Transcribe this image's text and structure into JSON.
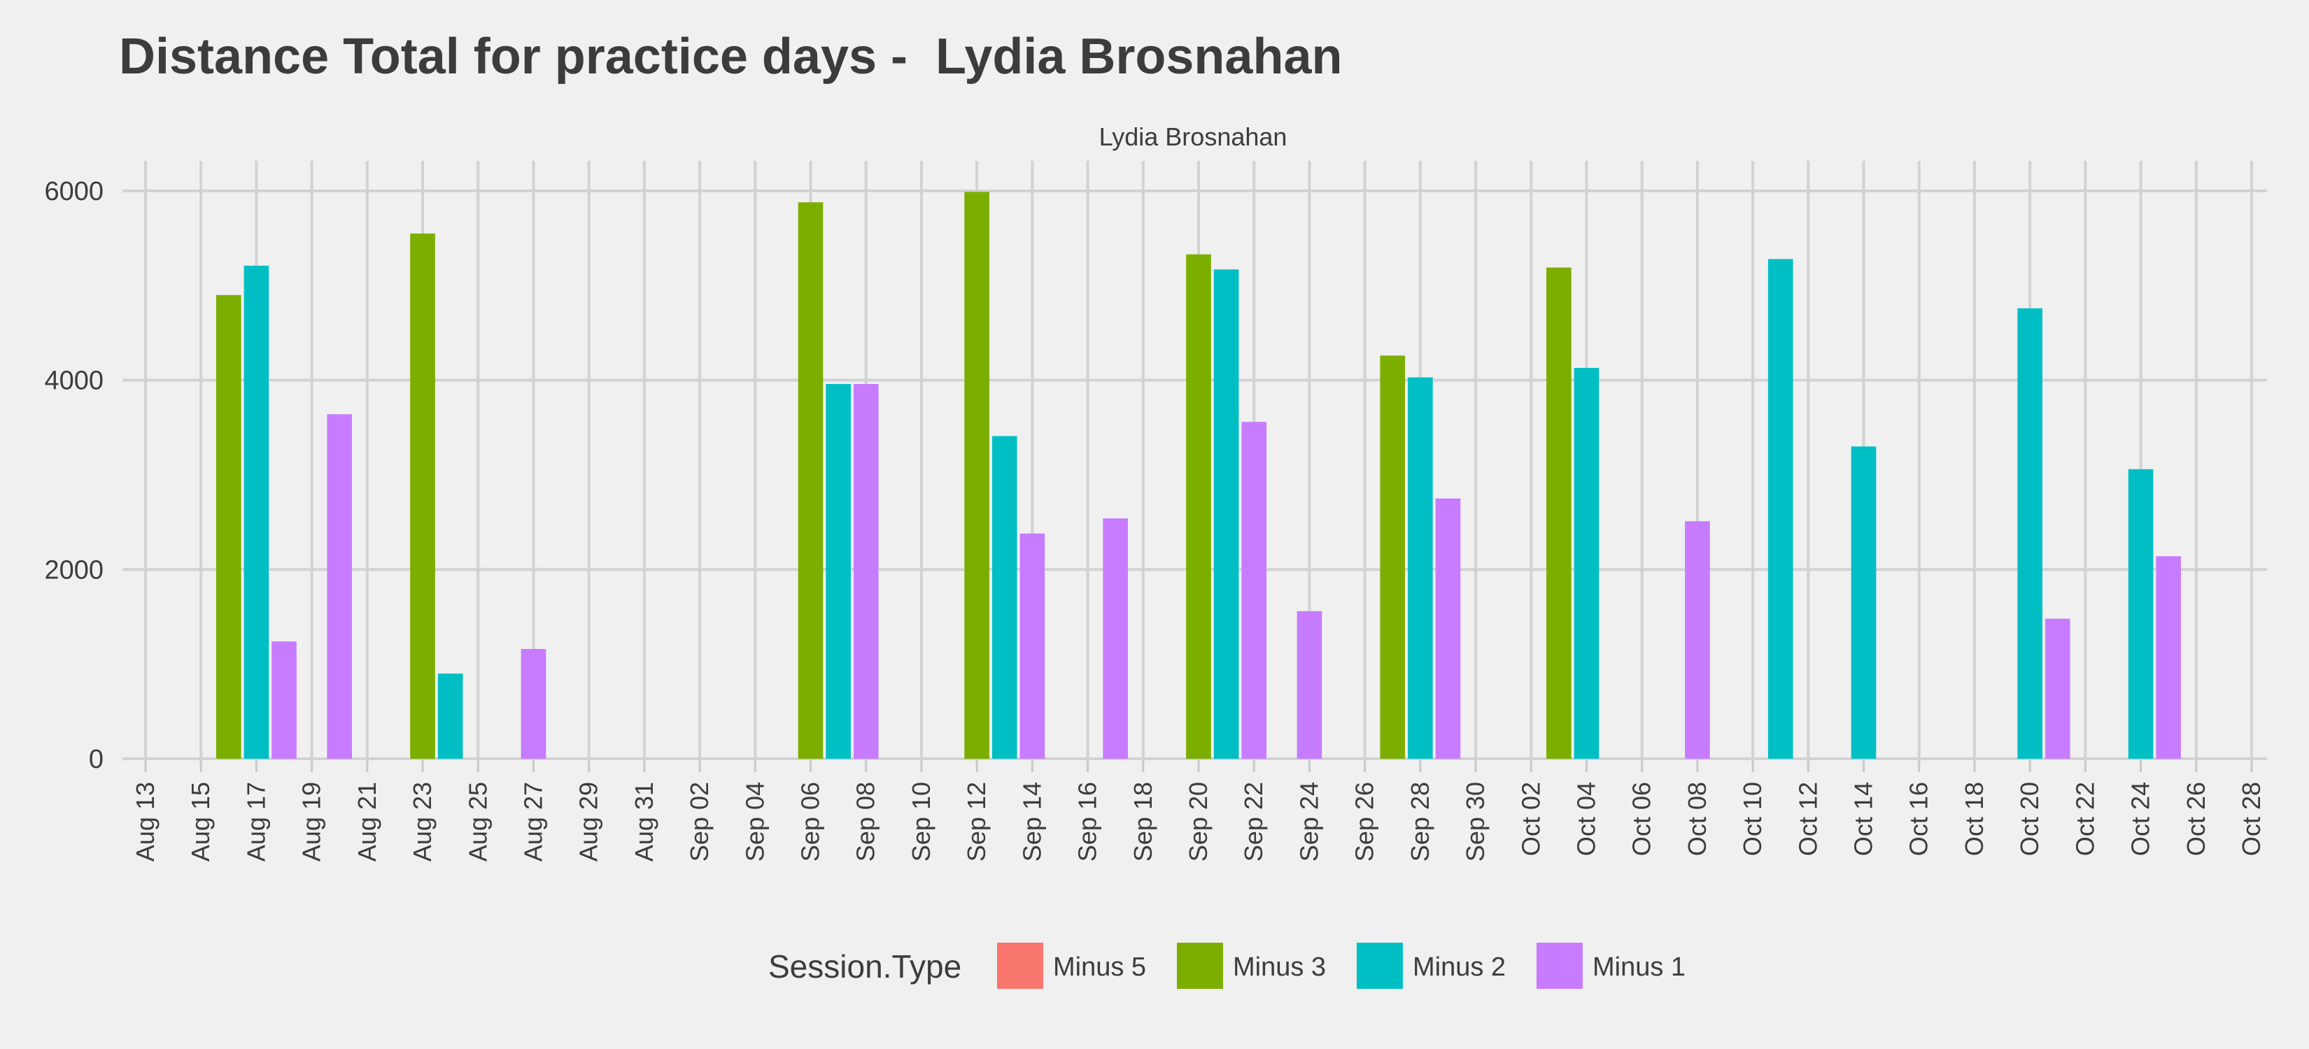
{
  "chart_data": {
    "type": "bar",
    "title": "Distance Total for practice days -  Lydia Brosnahan",
    "facet_label": "Lydia Brosnahan",
    "xlabel": "",
    "ylabel": "",
    "ylim": [
      0,
      6000
    ],
    "y_ticks": [
      0,
      2000,
      4000,
      6000
    ],
    "x_range": [
      "2018-08-13",
      "2018-10-28"
    ],
    "x_ticks": [
      "Aug 13",
      "Aug 15",
      "Aug 17",
      "Aug 19",
      "Aug 21",
      "Aug 23",
      "Aug 25",
      "Aug 27",
      "Aug 29",
      "Aug 31",
      "Sep 02",
      "Sep 04",
      "Sep 06",
      "Sep 08",
      "Sep 10",
      "Sep 12",
      "Sep 14",
      "Sep 16",
      "Sep 18",
      "Sep 20",
      "Sep 22",
      "Sep 24",
      "Sep 26",
      "Sep 28",
      "Sep 30",
      "Oct 02",
      "Oct 04",
      "Oct 06",
      "Oct 08",
      "Oct 10",
      "Oct 12",
      "Oct 14",
      "Oct 16",
      "Oct 18",
      "Oct 20",
      "Oct 22",
      "Oct 24",
      "Oct 26",
      "Oct 28"
    ],
    "grid": true,
    "legend": {
      "title": "Session.Type",
      "position": "bottom",
      "entries": [
        {
          "name": "Minus 5",
          "color": "#f8766d"
        },
        {
          "name": "Minus 3",
          "color": "#7cae00"
        },
        {
          "name": "Minus 2",
          "color": "#00bfc4"
        },
        {
          "name": "Minus 1",
          "color": "#c77cff"
        }
      ]
    },
    "series": [
      {
        "name": "Minus 3",
        "color": "#7cae00",
        "points": [
          {
            "date": "2018-08-16",
            "value": 4900
          },
          {
            "date": "2018-08-23",
            "value": 5550
          },
          {
            "date": "2018-09-06",
            "value": 5880
          },
          {
            "date": "2018-09-12",
            "value": 5990
          },
          {
            "date": "2018-09-20",
            "value": 5330
          },
          {
            "date": "2018-09-27",
            "value": 4260
          },
          {
            "date": "2018-10-03",
            "value": 5190
          }
        ]
      },
      {
        "name": "Minus 2",
        "color": "#00bfc4",
        "points": [
          {
            "date": "2018-08-17",
            "value": 5210
          },
          {
            "date": "2018-08-24",
            "value": 900
          },
          {
            "date": "2018-09-07",
            "value": 3960
          },
          {
            "date": "2018-09-13",
            "value": 3410
          },
          {
            "date": "2018-09-21",
            "value": 5170
          },
          {
            "date": "2018-09-28",
            "value": 4030
          },
          {
            "date": "2018-10-04",
            "value": 4130
          },
          {
            "date": "2018-10-11",
            "value": 5280
          },
          {
            "date": "2018-10-14",
            "value": 3300
          },
          {
            "date": "2018-10-20",
            "value": 4760
          },
          {
            "date": "2018-10-24",
            "value": 3060
          }
        ]
      },
      {
        "name": "Minus 1",
        "color": "#c77cff",
        "points": [
          {
            "date": "2018-08-18",
            "value": 1240
          },
          {
            "date": "2018-08-20",
            "value": 3640
          },
          {
            "date": "2018-08-27",
            "value": 1160
          },
          {
            "date": "2018-09-08",
            "value": 3960
          },
          {
            "date": "2018-09-14",
            "value": 2380
          },
          {
            "date": "2018-09-17",
            "value": 2540
          },
          {
            "date": "2018-09-22",
            "value": 3560
          },
          {
            "date": "2018-09-24",
            "value": 1560
          },
          {
            "date": "2018-09-29",
            "value": 2750
          },
          {
            "date": "2018-10-08",
            "value": 2510
          },
          {
            "date": "2018-10-21",
            "value": 1480
          },
          {
            "date": "2018-10-25",
            "value": 2140
          }
        ]
      }
    ]
  }
}
